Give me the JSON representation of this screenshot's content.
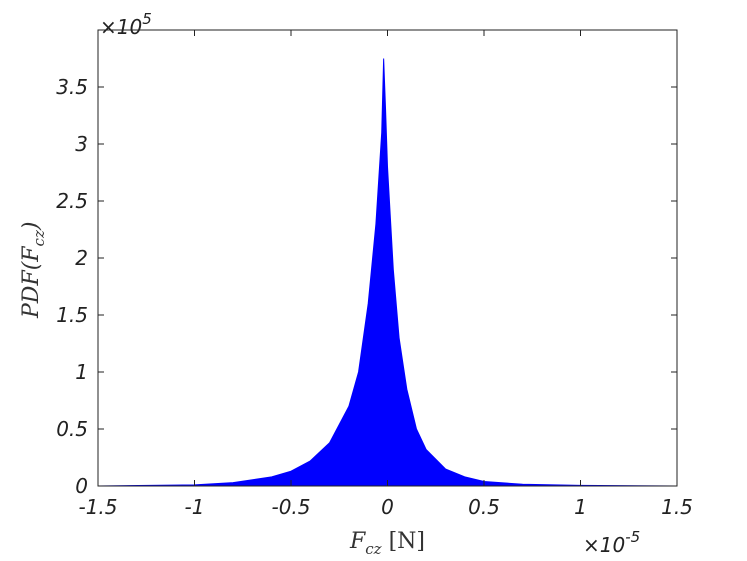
{
  "chart_data": {
    "type": "area",
    "color": "#0000ff",
    "x": [
      -1.5,
      -1.0,
      -0.8,
      -0.6,
      -0.5,
      -0.4,
      -0.3,
      -0.2,
      -0.15,
      -0.1,
      -0.06,
      -0.03,
      -0.02,
      -0.01,
      0,
      0.03,
      0.06,
      0.1,
      0.15,
      0.2,
      0.3,
      0.4,
      0.5,
      0.7,
      1.0,
      1.5
    ],
    "values": [
      0,
      0.01,
      0.03,
      0.08,
      0.13,
      0.22,
      0.38,
      0.7,
      1.0,
      1.6,
      2.3,
      3.1,
      3.75,
      3.3,
      2.8,
      1.9,
      1.3,
      0.85,
      0.5,
      0.32,
      0.15,
      0.08,
      0.04,
      0.015,
      0.005,
      0
    ],
    "xlim": [
      -1.5,
      1.5
    ],
    "xticks": [
      -1.5,
      -1,
      -0.5,
      0,
      0.5,
      1,
      1.5
    ],
    "ylim": [
      0,
      4
    ],
    "yticks": [
      0,
      0.5,
      1,
      1.5,
      2,
      2.5,
      3,
      3.5
    ],
    "xlabel": {
      "main": "F",
      "sub": "cz",
      "end": " [N]"
    },
    "ylabel": {
      "main": "PDF(F",
      "sub": "cz",
      "end": ")"
    },
    "x_multiplier": {
      "base": "×10",
      "exp": "-5"
    },
    "y_multiplier": {
      "base": "×10",
      "exp": "5"
    }
  }
}
